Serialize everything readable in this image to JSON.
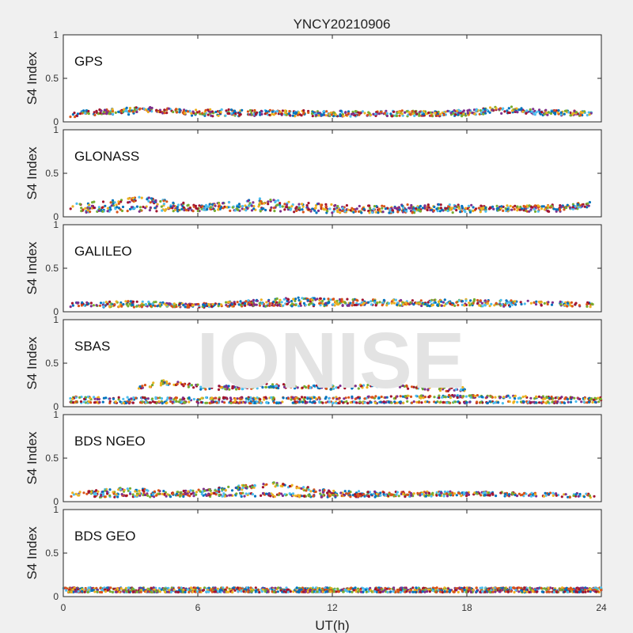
{
  "chart_data": {
    "type": "scatter",
    "title": "YNCY20210906",
    "xlabel": "UT(h)",
    "ylabel": "S4 Index",
    "xlim": [
      0,
      24
    ],
    "ylim": [
      0,
      1
    ],
    "xticks": [
      0,
      6,
      12,
      18,
      24
    ],
    "yticks": [
      0,
      0.5,
      1
    ],
    "ytick_labels": [
      "0",
      "0.5",
      "1"
    ],
    "grid": false,
    "watermark": "IONISE",
    "series_colors": [
      "#0072BD",
      "#D95319",
      "#EDB120",
      "#7E2F8E",
      "#77AC30",
      "#4DBEEE",
      "#A2142F"
    ],
    "panels": [
      {
        "label": "GPS",
        "series": [
          {
            "baseline": 0.08,
            "spread": 0.03,
            "values": [
              [
                0.5,
                0.08
              ],
              [
                1.5,
                0.12
              ],
              [
                2.5,
                0.1
              ],
              [
                4.0,
                0.15
              ],
              [
                6.0,
                0.09
              ],
              [
                9.0,
                0.1
              ],
              [
                12.0,
                0.09
              ],
              [
                15.0,
                0.1
              ],
              [
                18.0,
                0.09
              ],
              [
                19.5,
                0.16
              ],
              [
                21.0,
                0.11
              ],
              [
                23.5,
                0.09
              ]
            ]
          },
          {
            "baseline": 0.09,
            "spread": 0.03,
            "values": [
              [
                1.0,
                0.1
              ],
              [
                3.0,
                0.14
              ],
              [
                5.0,
                0.12
              ],
              [
                8.0,
                0.11
              ],
              [
                11.0,
                0.1
              ],
              [
                14.0,
                0.09
              ],
              [
                17.0,
                0.1
              ],
              [
                20.0,
                0.13
              ],
              [
                23.0,
                0.1
              ]
            ]
          }
        ]
      },
      {
        "label": "GLONASS",
        "series": [
          {
            "baseline": 0.09,
            "spread": 0.035,
            "values": [
              [
                0.5,
                0.12
              ],
              [
                2.0,
                0.15
              ],
              [
                3.5,
                0.2
              ],
              [
                6.0,
                0.1
              ],
              [
                9.0,
                0.18
              ],
              [
                10.0,
                0.14
              ],
              [
                13.0,
                0.09
              ],
              [
                16.0,
                0.11
              ],
              [
                19.0,
                0.1
              ],
              [
                22.0,
                0.09
              ],
              [
                23.5,
                0.15
              ]
            ]
          },
          {
            "baseline": 0.08,
            "spread": 0.03,
            "values": [
              [
                1.0,
                0.08
              ],
              [
                4.0,
                0.09
              ],
              [
                8.0,
                0.1
              ],
              [
                12.0,
                0.07
              ],
              [
                18.0,
                0.08
              ],
              [
                23.0,
                0.12
              ]
            ]
          }
        ]
      },
      {
        "label": "GALILEO",
        "series": [
          {
            "baseline": 0.08,
            "spread": 0.025,
            "values": [
              [
                0.5,
                0.08
              ],
              [
                3.0,
                0.1
              ],
              [
                6.0,
                0.07
              ],
              [
                10.5,
                0.14
              ],
              [
                12.5,
                0.12
              ],
              [
                16.0,
                0.11
              ],
              [
                18.0,
                0.12
              ],
              [
                21.0,
                0.1
              ],
              [
                23.5,
                0.08
              ]
            ]
          },
          {
            "baseline": 0.07,
            "spread": 0.02,
            "values": [
              [
                2.0,
                0.07
              ],
              [
                8.0,
                0.08
              ],
              [
                14.0,
                0.09
              ],
              [
                20.0,
                0.08
              ]
            ]
          }
        ]
      },
      {
        "label": "SBAS",
        "series": [
          {
            "baseline": 0.09,
            "spread": 0.015,
            "values": [
              [
                0.5,
                0.1
              ],
              [
                6.0,
                0.09
              ],
              [
                12.0,
                0.1
              ],
              [
                18.0,
                0.12
              ],
              [
                24.0,
                0.09
              ]
            ]
          },
          {
            "baseline": 0.05,
            "spread": 0.01,
            "values": [
              [
                0.5,
                0.05
              ],
              [
                12.0,
                0.05
              ],
              [
                24.0,
                0.05
              ]
            ]
          },
          {
            "baseline": 0.24,
            "spread": 0.025,
            "values": [
              [
                3.5,
                0.22
              ],
              [
                4.5,
                0.28
              ],
              [
                6.5,
                0.21
              ],
              [
                9.0,
                0.24
              ],
              [
                12.5,
                0.22
              ],
              [
                14.5,
                0.25
              ],
              [
                17.0,
                0.2
              ],
              [
                17.8,
                0.2
              ]
            ]
          }
        ]
      },
      {
        "label": "BDS NGEO",
        "series": [
          {
            "baseline": 0.08,
            "spread": 0.025,
            "values": [
              [
                0.5,
                0.08
              ],
              [
                2.7,
                0.14
              ],
              [
                5.0,
                0.09
              ],
              [
                9.5,
                0.2
              ],
              [
                12.0,
                0.1
              ],
              [
                15.0,
                0.09
              ],
              [
                18.0,
                0.1
              ],
              [
                21.0,
                0.08
              ],
              [
                23.5,
                0.07
              ]
            ]
          },
          {
            "baseline": 0.07,
            "spread": 0.02,
            "values": [
              [
                1.5,
                0.07
              ],
              [
                7.0,
                0.08
              ],
              [
                13.0,
                0.07
              ],
              [
                19.0,
                0.09
              ]
            ]
          }
        ]
      },
      {
        "label": "BDS GEO",
        "series": [
          {
            "baseline": 0.095,
            "spread": 0.008,
            "values": [
              [
                0,
                0.095
              ],
              [
                24,
                0.095
              ]
            ]
          },
          {
            "baseline": 0.075,
            "spread": 0.006,
            "values": [
              [
                0,
                0.075
              ],
              [
                24,
                0.075
              ]
            ]
          },
          {
            "baseline": 0.055,
            "spread": 0.005,
            "values": [
              [
                0,
                0.055
              ],
              [
                24,
                0.055
              ]
            ]
          }
        ]
      }
    ]
  }
}
